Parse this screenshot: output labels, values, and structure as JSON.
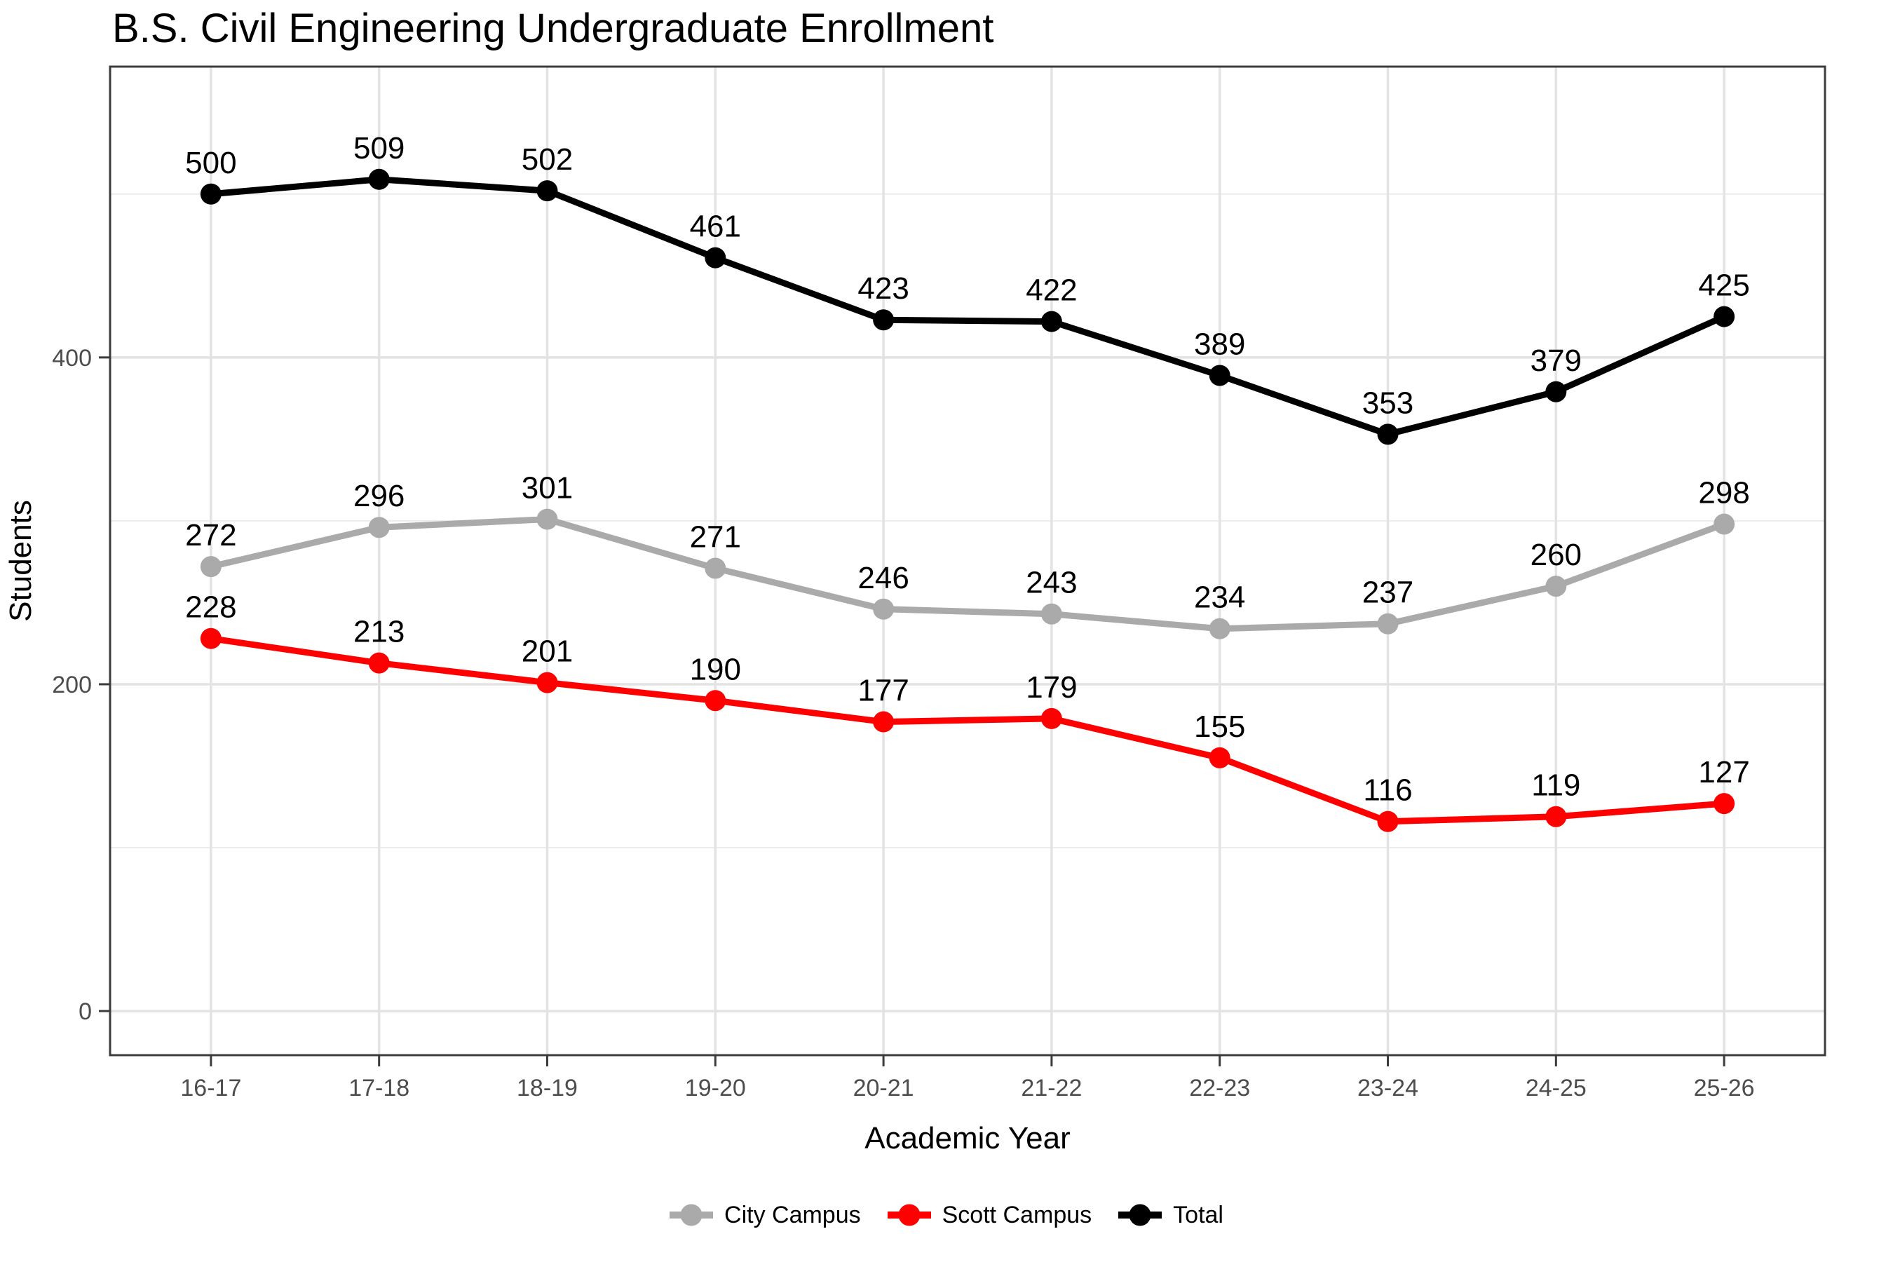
{
  "title": "B.S. Civil Engineering Undergraduate Enrollment",
  "chart_data": {
    "type": "line",
    "title": "B.S. Civil Engineering Undergraduate Enrollment",
    "xlabel": "Academic Year",
    "ylabel": "Students",
    "categories": [
      "16-17",
      "17-18",
      "18-19",
      "19-20",
      "20-21",
      "21-22",
      "22-23",
      "23-24",
      "24-25",
      "25-26"
    ],
    "series": [
      {
        "name": "City Campus",
        "color": "#AAAAAA",
        "values": [
          272,
          296,
          301,
          271,
          246,
          243,
          234,
          237,
          260,
          298
        ]
      },
      {
        "name": "Scott Campus",
        "color": "#FF0000",
        "values": [
          228,
          213,
          201,
          190,
          177,
          179,
          155,
          116,
          119,
          127
        ]
      },
      {
        "name": "Total",
        "color": "#000000",
        "values": [
          500,
          509,
          502,
          461,
          423,
          422,
          389,
          353,
          379,
          425
        ]
      }
    ],
    "y_ticks": [
      0,
      200,
      400
    ],
    "y_minor_ticks": [
      100,
      300,
      500
    ],
    "ylim": [
      -27,
      578
    ],
    "grid": true,
    "point_labels": true,
    "legend_position": "bottom"
  },
  "style": {
    "grid_major_color": "#E3E3E3",
    "grid_minor_color": "#ECECEC",
    "panel_border_color": "#3C3C3C",
    "tick_color": "#3C3C3C",
    "axis_text_color": "#4D4D4D",
    "title_color": "#000000",
    "label_color": "#000000",
    "background": "#FFFFFF"
  }
}
